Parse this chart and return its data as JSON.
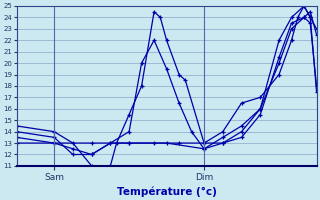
{
  "xlabel": "Température (°c)",
  "bg_color": "#cce8f0",
  "grid_color": "#88aacc",
  "line_color": "#0000aa",
  "marker": "+",
  "ylim": [
    11,
    25
  ],
  "xlim": [
    0,
    48
  ],
  "yticks": [
    11,
    12,
    13,
    14,
    15,
    16,
    17,
    18,
    19,
    20,
    21,
    22,
    23,
    24,
    25
  ],
  "sam_x": 6,
  "dim_x": 30,
  "lines": [
    [
      0,
      14.5,
      6,
      14.0,
      9,
      13.0,
      12,
      11.0,
      15,
      11.0,
      16,
      13.0,
      18,
      15.5,
      20,
      18.0,
      22,
      24.5,
      23,
      24.0,
      24,
      22.0,
      26,
      19.0,
      27,
      18.5,
      30,
      13.0,
      33,
      14.0,
      36,
      16.5,
      39,
      17.0,
      42,
      19.0,
      44,
      22.0,
      45,
      24.0,
      46,
      25.0,
      47,
      24.0,
      48,
      23.0
    ],
    [
      0,
      14.0,
      6,
      13.5,
      9,
      12.0,
      12,
      12.0,
      15,
      13.0,
      18,
      14.0,
      20,
      20.0,
      22,
      22.0,
      24,
      19.5,
      26,
      16.5,
      28,
      14.0,
      30,
      12.5,
      33,
      13.0,
      36,
      14.0,
      39,
      16.0,
      42,
      20.0,
      44,
      23.0,
      46,
      24.0,
      47,
      24.5,
      48,
      22.5
    ],
    [
      0,
      13.0,
      6,
      13.0,
      9,
      12.5,
      12,
      12.0,
      15,
      13.0,
      18,
      13.0,
      22,
      13.0,
      26,
      13.0,
      30,
      13.0,
      33,
      13.0,
      36,
      13.5,
      39,
      15.5,
      42,
      20.5,
      44,
      23.5,
      46,
      24.0,
      47,
      23.5,
      48,
      18.0
    ],
    [
      0,
      13.5,
      6,
      13.0,
      12,
      13.0,
      18,
      13.0,
      24,
      13.0,
      30,
      12.5,
      33,
      13.5,
      36,
      14.5,
      39,
      16.0,
      42,
      22.0,
      44,
      24.0,
      46,
      25.0,
      47,
      24.0,
      48,
      17.5
    ]
  ],
  "xtick_positions": [
    6,
    30
  ],
  "xtick_labels": [
    "Sam",
    "Dim"
  ]
}
